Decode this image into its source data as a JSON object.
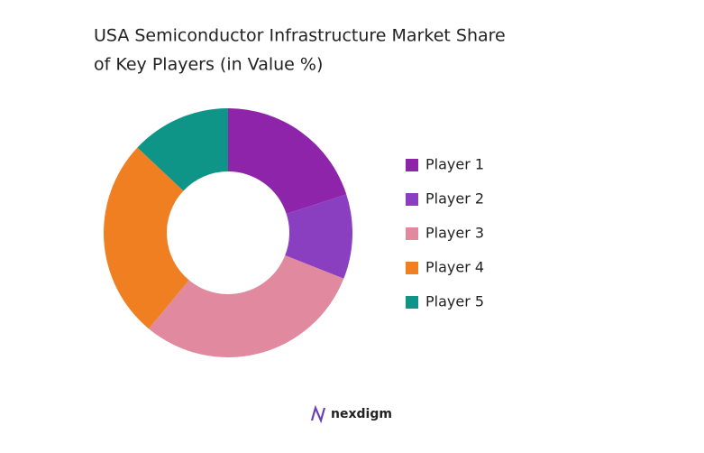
{
  "chart_data": {
    "type": "donut",
    "title": "USA Semiconductor Infrastructure Market Share of Key Players (in Value %)",
    "categories": [
      "Player 1",
      "Player 2",
      "Player 3",
      "Player 4",
      "Player 5"
    ],
    "values": [
      20,
      11,
      30,
      26,
      13
    ],
    "colors": [
      "#8e24aa",
      "#8a3fc1",
      "#e0899f",
      "#f07f22",
      "#0f9488"
    ]
  },
  "footer": {
    "brand": "nexdigm"
  }
}
